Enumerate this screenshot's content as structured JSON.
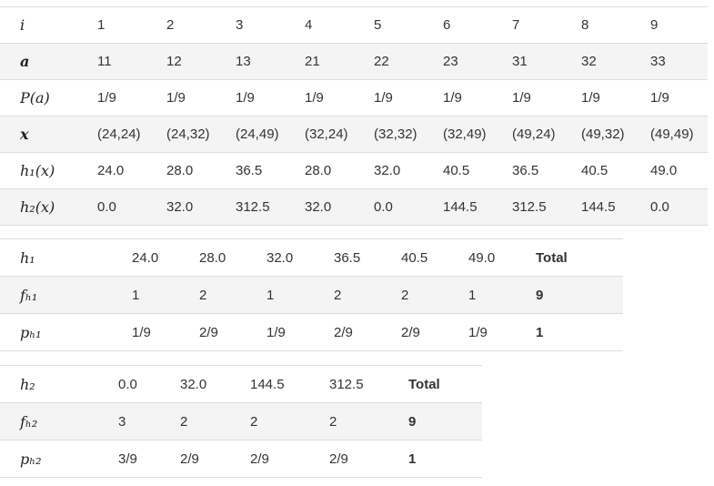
{
  "tables": [
    {
      "rows": [
        [
          "i",
          "1",
          "2",
          "3",
          "4",
          "5",
          "6",
          "7",
          "8",
          "9"
        ],
        [
          "a",
          "11",
          "12",
          "13",
          "21",
          "22",
          "23",
          "31",
          "32",
          "33"
        ],
        [
          "P(a)",
          "1/9",
          "1/9",
          "1/9",
          "1/9",
          "1/9",
          "1/9",
          "1/9",
          "1/9",
          "1/9"
        ],
        [
          "x",
          "(24,24)",
          "(24,32)",
          "(24,49)",
          "(32,24)",
          "(32,32)",
          "(32,49)",
          "(49,24)",
          "(49,32)",
          "(49,49)"
        ],
        [
          "h₁(x)",
          "24.0",
          "28.0",
          "36.5",
          "28.0",
          "32.0",
          "40.5",
          "36.5",
          "40.5",
          "49.0"
        ],
        [
          "h₂(x)",
          "0.0",
          "32.0",
          "312.5",
          "32.0",
          "0.0",
          "144.5",
          "312.5",
          "144.5",
          "0.0"
        ]
      ]
    },
    {
      "rows": [
        [
          "h₁",
          "24.0",
          "28.0",
          "32.0",
          "36.5",
          "40.5",
          "49.0",
          "Total"
        ],
        [
          "fₕ₁",
          "1",
          "2",
          "1",
          "2",
          "2",
          "1",
          "9"
        ],
        [
          "pₕ₁",
          "1/9",
          "2/9",
          "1/9",
          "2/9",
          "2/9",
          "1/9",
          "1"
        ]
      ]
    },
    {
      "rows": [
        [
          "h₂",
          "0.0",
          "32.0",
          "144.5",
          "312.5",
          "Total"
        ],
        [
          "fₕ₂",
          "3",
          "2",
          "2",
          "2",
          "9"
        ],
        [
          "pₕ₂",
          "3/9",
          "2/9",
          "2/9",
          "2/9",
          "1"
        ]
      ]
    }
  ]
}
